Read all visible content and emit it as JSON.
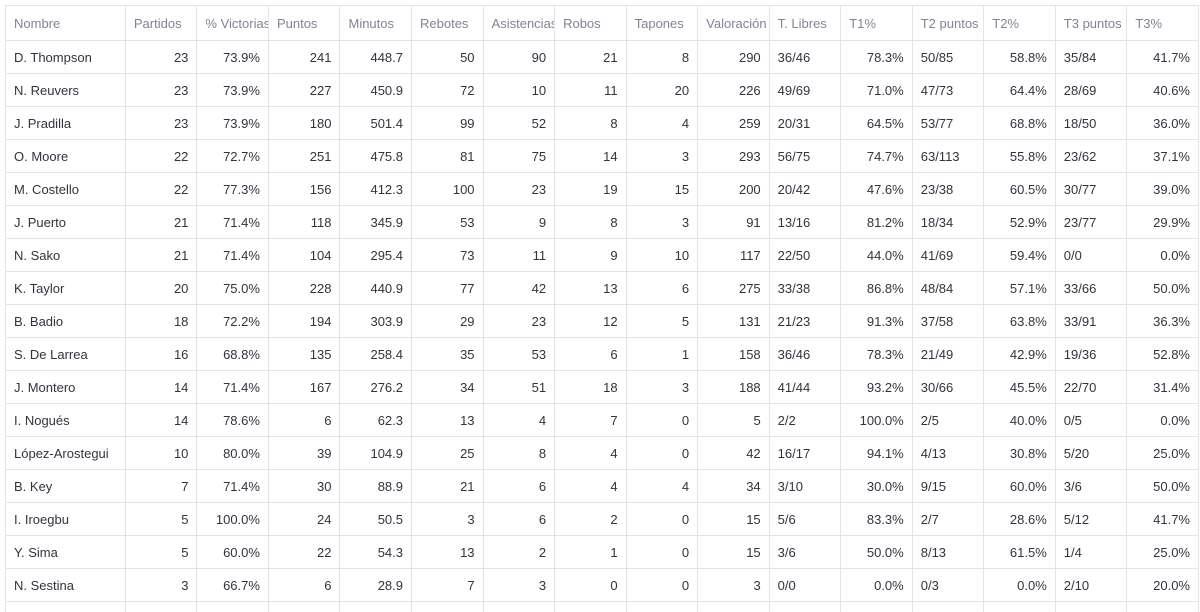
{
  "table": {
    "columns": [
      "Nombre",
      "Partidos",
      "% Victorias",
      "Puntos",
      "Minutos",
      "Rebotes",
      "Asistencias",
      "Robos",
      "Tapones",
      "Valoración",
      "T. Libres",
      "T1%",
      "T2 puntos",
      "T2%",
      "T3 puntos",
      "T3%"
    ],
    "column_align": [
      "txt",
      "num",
      "num",
      "num",
      "num",
      "num",
      "num",
      "num",
      "num",
      "num",
      "txt",
      "num",
      "txt",
      "num",
      "txt",
      "num"
    ],
    "rows": [
      [
        "D. Thompson",
        "23",
        "73.9%",
        "241",
        "448.7",
        "50",
        "90",
        "21",
        "8",
        "290",
        "36/46",
        "78.3%",
        "50/85",
        "58.8%",
        "35/84",
        "41.7%"
      ],
      [
        "N. Reuvers",
        "23",
        "73.9%",
        "227",
        "450.9",
        "72",
        "10",
        "11",
        "20",
        "226",
        "49/69",
        "71.0%",
        "47/73",
        "64.4%",
        "28/69",
        "40.6%"
      ],
      [
        "J. Pradilla",
        "23",
        "73.9%",
        "180",
        "501.4",
        "99",
        "52",
        "8",
        "4",
        "259",
        "20/31",
        "64.5%",
        "53/77",
        "68.8%",
        "18/50",
        "36.0%"
      ],
      [
        "O. Moore",
        "22",
        "72.7%",
        "251",
        "475.8",
        "81",
        "75",
        "14",
        "3",
        "293",
        "56/75",
        "74.7%",
        "63/113",
        "55.8%",
        "23/62",
        "37.1%"
      ],
      [
        "M. Costello",
        "22",
        "77.3%",
        "156",
        "412.3",
        "100",
        "23",
        "19",
        "15",
        "200",
        "20/42",
        "47.6%",
        "23/38",
        "60.5%",
        "30/77",
        "39.0%"
      ],
      [
        "J. Puerto",
        "21",
        "71.4%",
        "118",
        "345.9",
        "53",
        "9",
        "8",
        "3",
        "91",
        "13/16",
        "81.2%",
        "18/34",
        "52.9%",
        "23/77",
        "29.9%"
      ],
      [
        "N. Sako",
        "21",
        "71.4%",
        "104",
        "295.4",
        "73",
        "11",
        "9",
        "10",
        "117",
        "22/50",
        "44.0%",
        "41/69",
        "59.4%",
        "0/0",
        "0.0%"
      ],
      [
        "K. Taylor",
        "20",
        "75.0%",
        "228",
        "440.9",
        "77",
        "42",
        "13",
        "6",
        "275",
        "33/38",
        "86.8%",
        "48/84",
        "57.1%",
        "33/66",
        "50.0%"
      ],
      [
        "B. Badio",
        "18",
        "72.2%",
        "194",
        "303.9",
        "29",
        "23",
        "12",
        "5",
        "131",
        "21/23",
        "91.3%",
        "37/58",
        "63.8%",
        "33/91",
        "36.3%"
      ],
      [
        "S. De Larrea",
        "16",
        "68.8%",
        "135",
        "258.4",
        "35",
        "53",
        "6",
        "1",
        "158",
        "36/46",
        "78.3%",
        "21/49",
        "42.9%",
        "19/36",
        "52.8%"
      ],
      [
        "J. Montero",
        "14",
        "71.4%",
        "167",
        "276.2",
        "34",
        "51",
        "18",
        "3",
        "188",
        "41/44",
        "93.2%",
        "30/66",
        "45.5%",
        "22/70",
        "31.4%"
      ],
      [
        "I. Nogués",
        "14",
        "78.6%",
        "6",
        "62.3",
        "13",
        "4",
        "7",
        "0",
        "5",
        "2/2",
        "100.0%",
        "2/5",
        "40.0%",
        "0/5",
        "0.0%"
      ],
      [
        "López-Arostegui",
        "10",
        "80.0%",
        "39",
        "104.9",
        "25",
        "8",
        "4",
        "0",
        "42",
        "16/17",
        "94.1%",
        "4/13",
        "30.8%",
        "5/20",
        "25.0%"
      ],
      [
        "B. Key",
        "7",
        "71.4%",
        "30",
        "88.9",
        "21",
        "6",
        "4",
        "4",
        "34",
        "3/10",
        "30.0%",
        "9/15",
        "60.0%",
        "3/6",
        "50.0%"
      ],
      [
        "I. Iroegbu",
        "5",
        "100.0%",
        "24",
        "50.5",
        "3",
        "6",
        "2",
        "0",
        "15",
        "5/6",
        "83.3%",
        "2/7",
        "28.6%",
        "5/12",
        "41.7%"
      ],
      [
        "Y. Sima",
        "5",
        "60.0%",
        "22",
        "54.3",
        "13",
        "2",
        "1",
        "0",
        "15",
        "3/6",
        "50.0%",
        "8/13",
        "61.5%",
        "1/4",
        "25.0%"
      ],
      [
        "N. Sestina",
        "3",
        "66.7%",
        "6",
        "28.9",
        "7",
        "3",
        "0",
        "0",
        "3",
        "0/0",
        "0.0%",
        "0/3",
        "0.0%",
        "2/10",
        "20.0%"
      ]
    ]
  }
}
